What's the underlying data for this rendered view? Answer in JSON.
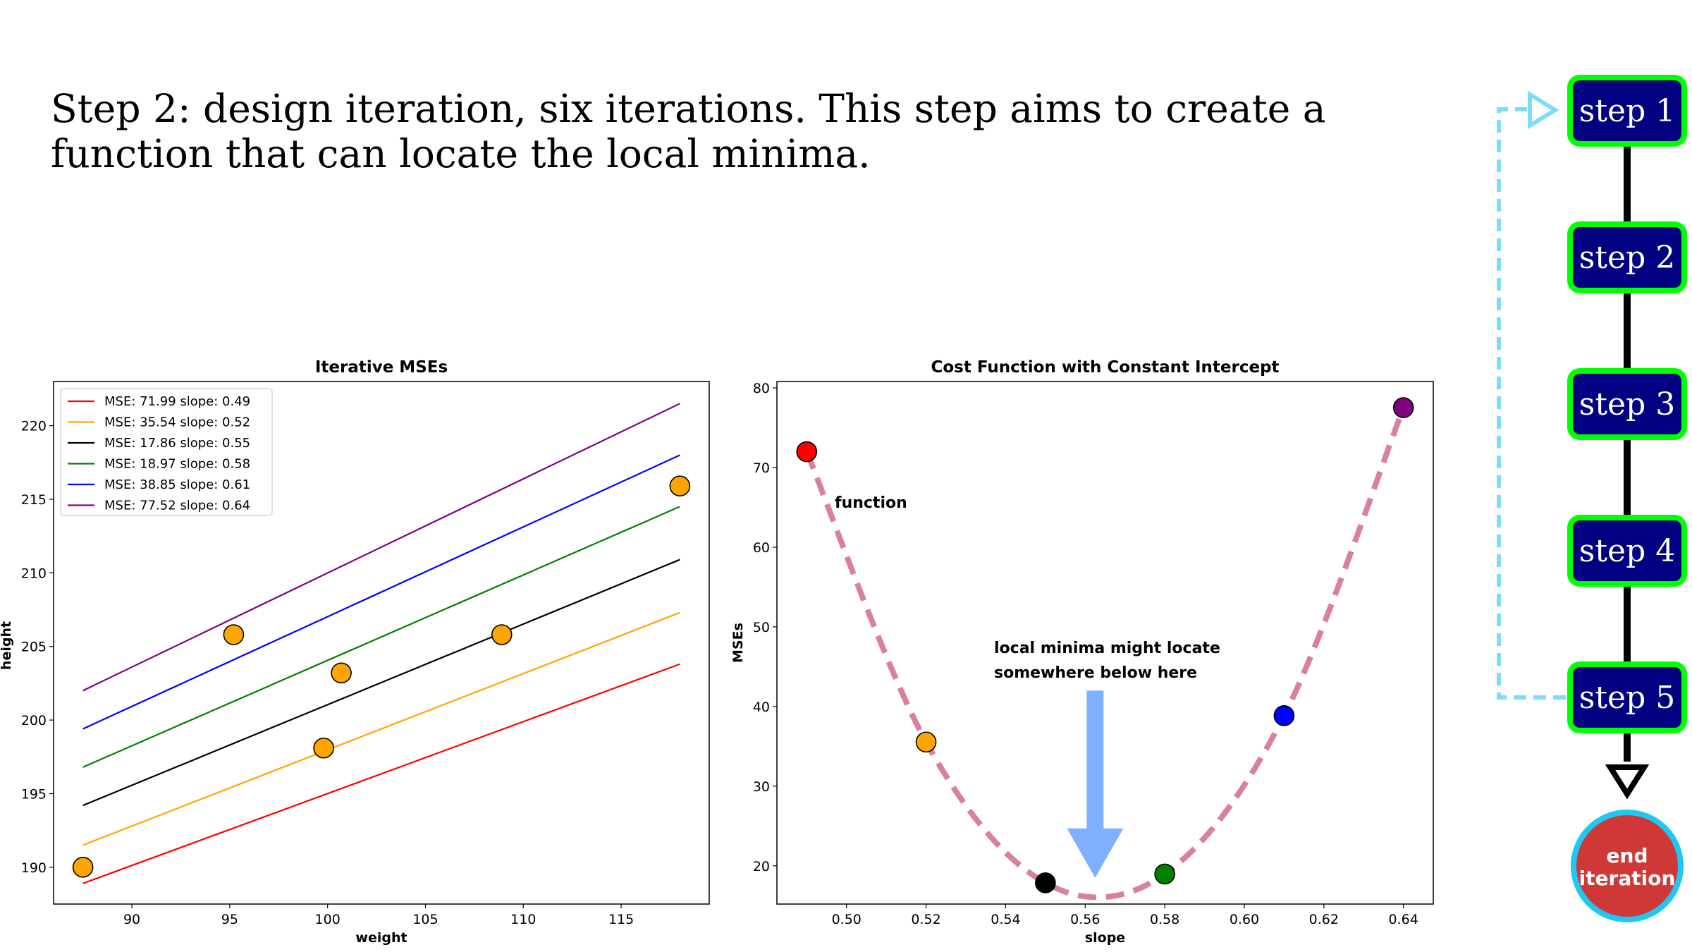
{
  "heading": "Step 2: design iteration, six iterations. This step aims to create a function that can locate the local minima.",
  "colors": {
    "point_fill": "#ffa500",
    "cost_curve": "#d880a0",
    "arrow": "#7fb0ff",
    "step_fill": "#000080",
    "step_border": "#00ff00",
    "end_fill": "#d03838",
    "end_border": "#1ec8f0",
    "loop_arrow": "#7fdcf8"
  },
  "chart_data": [
    {
      "type": "line",
      "title": "Iterative MSEs",
      "xlabel": "weight",
      "ylabel": "height",
      "xlim": [
        86,
        119.5
      ],
      "ylim": [
        187.5,
        223
      ],
      "xticks": [
        90,
        95,
        100,
        105,
        110,
        115
      ],
      "yticks": [
        190,
        195,
        200,
        205,
        210,
        215,
        220
      ],
      "legend_position": "top-left",
      "line_x": [
        87.5,
        118
      ],
      "series": [
        {
          "name": "MSE: 71.99 slope: 0.49",
          "color": "#ff0000",
          "values": [
            188.9,
            203.8
          ]
        },
        {
          "name": "MSE: 35.54 slope: 0.52",
          "color": "#ffa500",
          "values": [
            191.5,
            207.3
          ]
        },
        {
          "name": "MSE: 17.86 slope: 0.55",
          "color": "#000000",
          "values": [
            194.2,
            210.9
          ]
        },
        {
          "name": "MSE: 18.97 slope: 0.58",
          "color": "#008000",
          "values": [
            196.8,
            214.5
          ]
        },
        {
          "name": "MSE: 38.85 slope: 0.61",
          "color": "#0000ff",
          "values": [
            199.4,
            218.0
          ]
        },
        {
          "name": "MSE: 77.52 slope: 0.64",
          "color": "#800080",
          "values": [
            202.0,
            221.5
          ]
        }
      ],
      "points": [
        {
          "x": 87.5,
          "y": 190.0
        },
        {
          "x": 95.2,
          "y": 205.8
        },
        {
          "x": 99.8,
          "y": 198.1
        },
        {
          "x": 100.7,
          "y": 203.2
        },
        {
          "x": 108.9,
          "y": 205.8
        },
        {
          "x": 118.0,
          "y": 215.9
        }
      ]
    },
    {
      "type": "line",
      "title": "Cost Function with Constant Intercept",
      "xlabel": "slope",
      "ylabel": "MSEs",
      "xlim": [
        0.4825,
        0.6475
      ],
      "ylim": [
        15.2,
        80.8
      ],
      "xticks": [
        "0.50",
        "0.52",
        "0.54",
        "0.56",
        "0.58",
        "0.60",
        "0.62",
        "0.64"
      ],
      "yticks": [
        20,
        30,
        40,
        50,
        60,
        70,
        80
      ],
      "points": [
        {
          "x": 0.49,
          "y": 71.99,
          "color": "#ff0000"
        },
        {
          "x": 0.52,
          "y": 35.54,
          "color": "#ffa500"
        },
        {
          "x": 0.55,
          "y": 17.86,
          "color": "#000000"
        },
        {
          "x": 0.58,
          "y": 18.97,
          "color": "#008000"
        },
        {
          "x": 0.61,
          "y": 38.85,
          "color": "#0000ff"
        },
        {
          "x": 0.64,
          "y": 77.52,
          "color": "#800080"
        }
      ],
      "curve_label": "function",
      "annotation_lines": [
        "local minima might locate",
        "somewhere below here"
      ],
      "arrow_x": 0.5625,
      "arrow_from_y": 42,
      "arrow_to_y": 18.5
    }
  ],
  "steps": [
    "step 1",
    "step 2",
    "step 3",
    "step 4",
    "step 5"
  ],
  "end_label_lines": [
    "end",
    "iteration"
  ]
}
